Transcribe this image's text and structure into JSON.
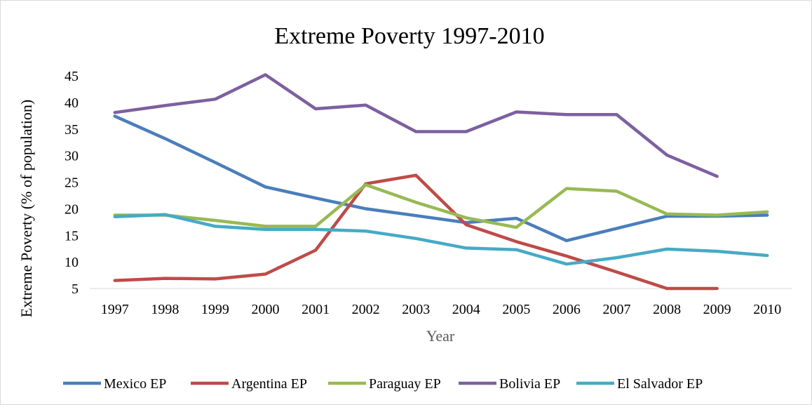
{
  "chart_data": {
    "type": "line",
    "title": "Extreme Poverty 1997-2010",
    "xlabel": "Year",
    "ylabel": "Extreme Poverty (% of population)",
    "categories": [
      "1997",
      "1998",
      "1999",
      "2000",
      "2001",
      "2002",
      "2003",
      "2004",
      "2005",
      "2006",
      "2007",
      "2008",
      "2009",
      "2010"
    ],
    "yticks": [
      "5",
      "10",
      "15",
      "20",
      "25",
      "30",
      "35",
      "40",
      "45"
    ],
    "ylim": [
      5,
      45
    ],
    "grid": false,
    "legend_position": "bottom",
    "series": [
      {
        "name": "Mexico EP",
        "color": "#4a7ebb",
        "values": [
          37.4,
          33.2,
          28.7,
          24.1,
          22.0,
          20.0,
          18.7,
          17.4,
          18.2,
          14.0,
          16.3,
          18.6,
          18.6,
          18.8
        ]
      },
      {
        "name": "Argentina EP",
        "color": "#be4b48",
        "values": [
          6.5,
          6.9,
          6.8,
          7.7,
          12.2,
          24.7,
          26.3,
          17.0,
          13.8,
          11.1,
          8.1,
          5.0,
          4.0,
          null
        ]
      },
      {
        "name": "Paraguay EP",
        "color": "#98b954",
        "values": [
          18.8,
          18.8,
          17.8,
          16.7,
          16.7,
          24.5,
          21.2,
          18.3,
          16.5,
          23.8,
          23.3,
          19.0,
          18.8,
          19.4
        ]
      },
      {
        "name": "Bolivia EP",
        "color": "#7d60a0",
        "values": [
          38.1,
          39.4,
          40.6,
          45.2,
          38.8,
          39.5,
          34.5,
          34.5,
          38.2,
          37.7,
          37.7,
          30.1,
          26.1,
          null
        ]
      },
      {
        "name": "El Salvador EP",
        "color": "#46aac5",
        "values": [
          18.5,
          18.9,
          16.7,
          16.1,
          16.1,
          15.8,
          14.4,
          12.6,
          12.3,
          9.6,
          10.8,
          12.4,
          12.0,
          11.2
        ]
      }
    ]
  }
}
